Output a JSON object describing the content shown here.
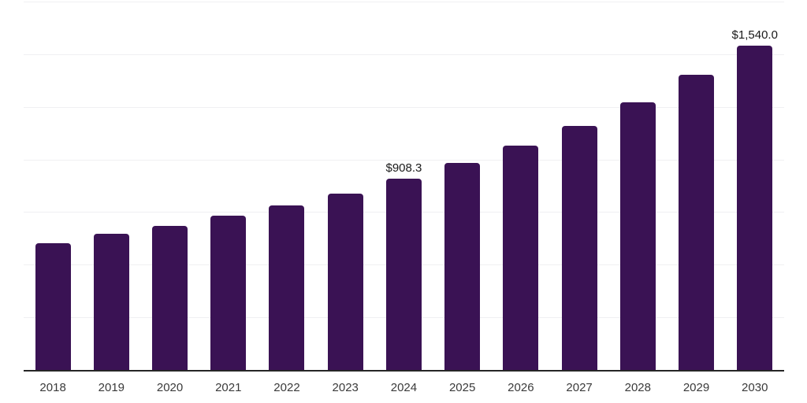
{
  "chart_data": {
    "type": "bar",
    "title": "",
    "xlabel": "",
    "ylabel": "",
    "categories": [
      "2018",
      "2019",
      "2020",
      "2021",
      "2022",
      "2023",
      "2024",
      "2025",
      "2026",
      "2027",
      "2028",
      "2029",
      "2030"
    ],
    "values": [
      601.0,
      647.0,
      685.0,
      732.0,
      780.0,
      838.0,
      908.3,
      983.0,
      1067.0,
      1161.0,
      1273.0,
      1403.0,
      1540.0
    ],
    "value_labels": [
      "",
      "",
      "",
      "",
      "",
      "",
      "$908.3",
      "",
      "",
      "",
      "",
      "",
      "$1,540.0"
    ],
    "ylim": [
      0,
      1750
    ],
    "gridline_values": [
      250,
      500,
      750,
      1000,
      1250,
      1500,
      1750
    ],
    "grid": "horizontal",
    "legend": "none",
    "y_axis_ticks_visible": false,
    "colors": {
      "bar": "#3a1254",
      "axis_line": "#262626",
      "gridline": "#f0f0f2",
      "tick_label": "#3a3a3a",
      "value_label": "#1a1a1a",
      "background": "#ffffff"
    }
  }
}
